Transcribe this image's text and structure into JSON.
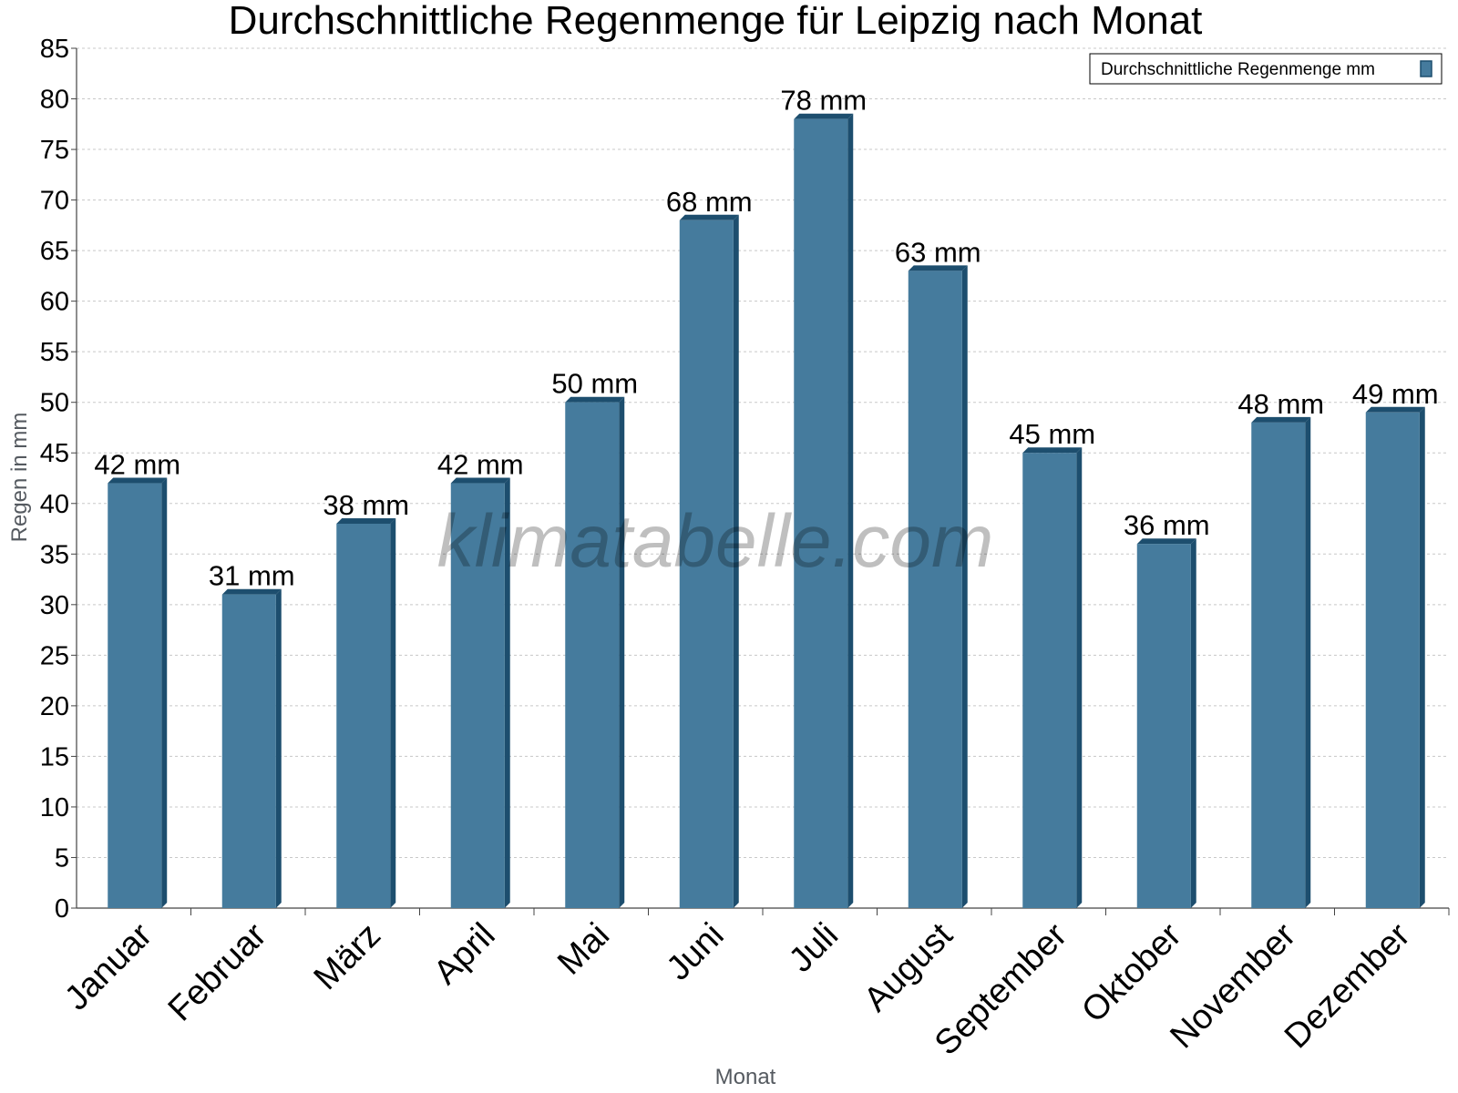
{
  "chart_data": {
    "type": "bar",
    "title": "Durchschnittliche Regenmenge für Leipzig nach Monat",
    "xlabel": "Monat",
    "ylabel": "Regen in mm",
    "ylim": [
      0,
      85
    ],
    "ytick_step": 5,
    "grid": true,
    "legend_position": "top-right",
    "unit_suffix": " mm",
    "categories": [
      "Januar",
      "Februar",
      "März",
      "April",
      "Mai",
      "Juni",
      "Juli",
      "August",
      "September",
      "Oktober",
      "November",
      "Dezember"
    ],
    "series": [
      {
        "name": "Durchschnittliche Regenmenge mm",
        "color": "#457b9d",
        "values": [
          42,
          31,
          38,
          42,
          50,
          68,
          78,
          63,
          45,
          36,
          48,
          49
        ]
      }
    ]
  },
  "watermark": "klimatabelle.com",
  "colors": {
    "bar_front": "#457b9d",
    "bar_side": "#1d4e6e",
    "bar_top": "#1d4e6e",
    "grid": "#c8c8c8",
    "axis": "#444444"
  }
}
